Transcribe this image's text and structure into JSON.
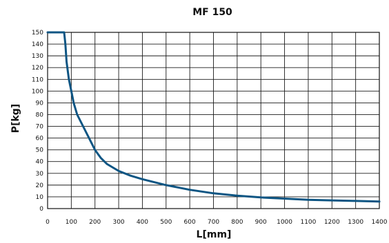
{
  "chart_data": {
    "type": "line",
    "title": "MF 150",
    "xlabel": "L[mm]",
    "ylabel": "P[kg]",
    "xlim": [
      0,
      1400
    ],
    "ylim": [
      0,
      150
    ],
    "xticks": [
      0,
      100,
      200,
      300,
      400,
      500,
      600,
      700,
      800,
      900,
      1000,
      1100,
      1200,
      1300,
      1400
    ],
    "yticks": [
      0,
      10,
      20,
      30,
      40,
      50,
      60,
      70,
      80,
      90,
      100,
      110,
      120,
      130,
      140,
      150
    ],
    "grid": true,
    "series": [
      {
        "color": "#0d5583",
        "x": [
          0,
          70,
          75,
          80,
          90,
          100,
          110,
          125,
          150,
          175,
          200,
          225,
          250,
          300,
          350,
          400,
          500,
          600,
          700,
          800,
          900,
          1000,
          1100,
          1200,
          1300,
          1400
        ],
        "y": [
          150,
          150,
          140,
          125,
          110,
          100,
          90,
          80,
          70,
          60,
          50,
          43,
          38,
          32,
          28,
          25,
          20,
          16,
          13,
          11,
          9.5,
          8.5,
          7.5,
          7,
          6.5,
          6
        ]
      }
    ]
  }
}
